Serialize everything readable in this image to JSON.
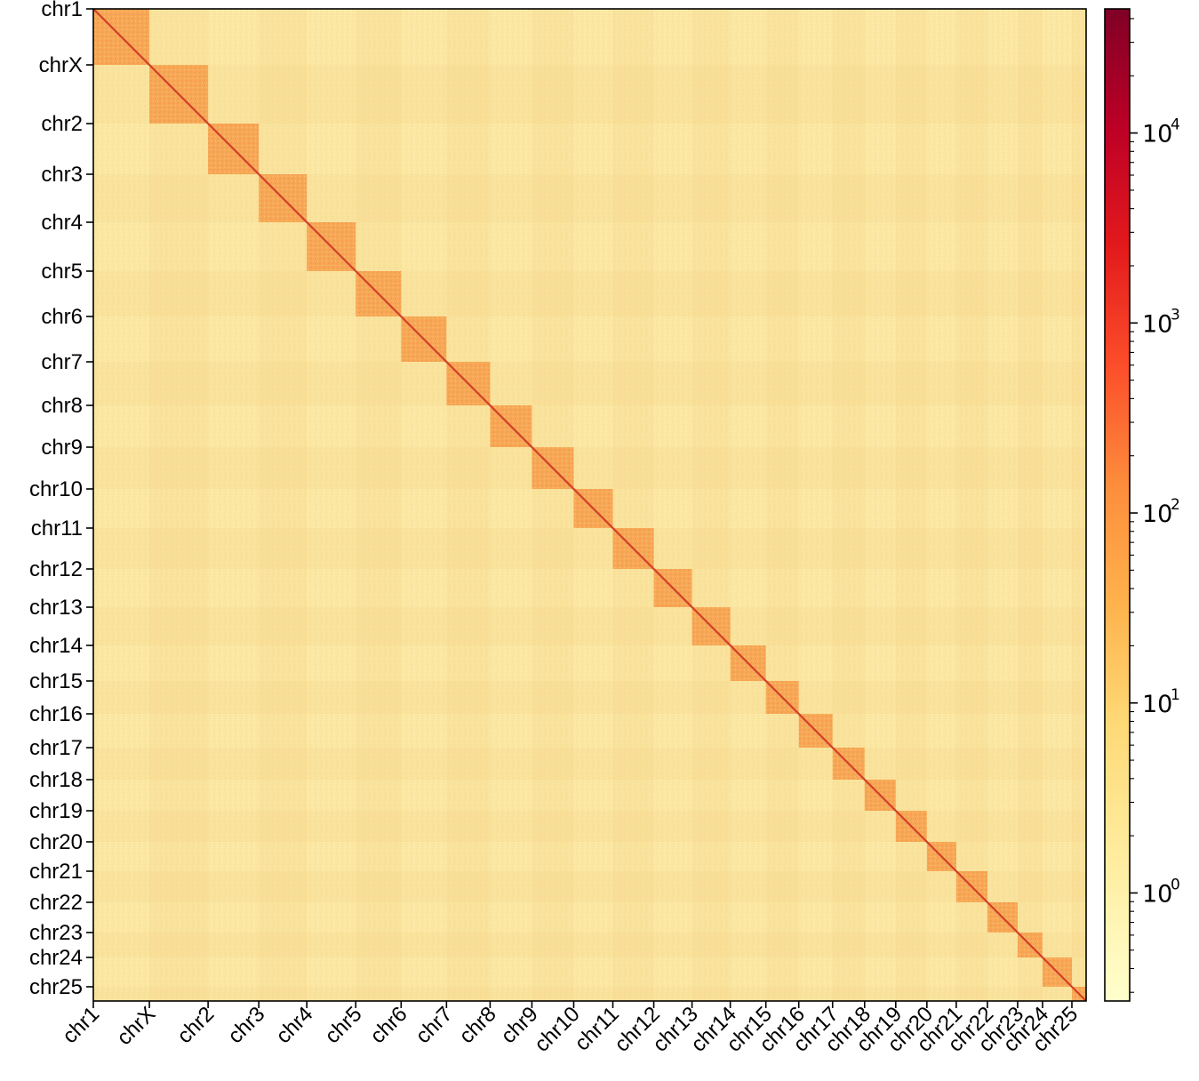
{
  "chart_data": {
    "type": "heatmap",
    "title": "",
    "xlabel": "",
    "ylabel": "",
    "chromosomes": [
      {
        "name": "chr1",
        "start": 0,
        "end": 63
      },
      {
        "name": "chrX",
        "start": 63,
        "end": 129
      },
      {
        "name": "chr2",
        "start": 129,
        "end": 186
      },
      {
        "name": "chr3",
        "start": 186,
        "end": 240
      },
      {
        "name": "chr4",
        "start": 240,
        "end": 295
      },
      {
        "name": "chr5",
        "start": 295,
        "end": 346
      },
      {
        "name": "chr6",
        "start": 346,
        "end": 397
      },
      {
        "name": "chr7",
        "start": 397,
        "end": 446
      },
      {
        "name": "chr8",
        "start": 446,
        "end": 493
      },
      {
        "name": "chr9",
        "start": 493,
        "end": 540
      },
      {
        "name": "chr10",
        "start": 540,
        "end": 584
      },
      {
        "name": "chr11",
        "start": 584,
        "end": 630
      },
      {
        "name": "chr12",
        "start": 630,
        "end": 673
      },
      {
        "name": "chr13",
        "start": 673,
        "end": 716
      },
      {
        "name": "chr14",
        "start": 716,
        "end": 756
      },
      {
        "name": "chr15",
        "start": 756,
        "end": 793
      },
      {
        "name": "chr16",
        "start": 793,
        "end": 831
      },
      {
        "name": "chr17",
        "start": 831,
        "end": 867
      },
      {
        "name": "chr18",
        "start": 867,
        "end": 902
      },
      {
        "name": "chr19",
        "start": 902,
        "end": 937
      },
      {
        "name": "chr20",
        "start": 937,
        "end": 970
      },
      {
        "name": "chr21",
        "start": 970,
        "end": 1005
      },
      {
        "name": "chr22",
        "start": 1005,
        "end": 1039
      },
      {
        "name": "chr23",
        "start": 1039,
        "end": 1067
      },
      {
        "name": "chr24",
        "start": 1067,
        "end": 1100
      },
      {
        "name": "chr25",
        "start": 1100,
        "end": 1116
      }
    ],
    "genome_length": 1116,
    "diagonal_value": 5000,
    "intra_chromosome_value": 30,
    "background_value": 2,
    "colorbar": {
      "scale": "log",
      "range": [
        0.27,
        45000
      ],
      "ticks": [
        {
          "base": "10",
          "exp": "0",
          "value": 1
        },
        {
          "base": "10",
          "exp": "1",
          "value": 10
        },
        {
          "base": "10",
          "exp": "2",
          "value": 100
        },
        {
          "base": "10",
          "exp": "3",
          "value": 1000
        },
        {
          "base": "10",
          "exp": "4",
          "value": 10000
        }
      ],
      "colors": [
        "#ffffcc",
        "#ffeda0",
        "#fed976",
        "#feb24c",
        "#fd8d3c",
        "#fc4e2a",
        "#e31a1c",
        "#bd0026",
        "#800026"
      ]
    }
  }
}
